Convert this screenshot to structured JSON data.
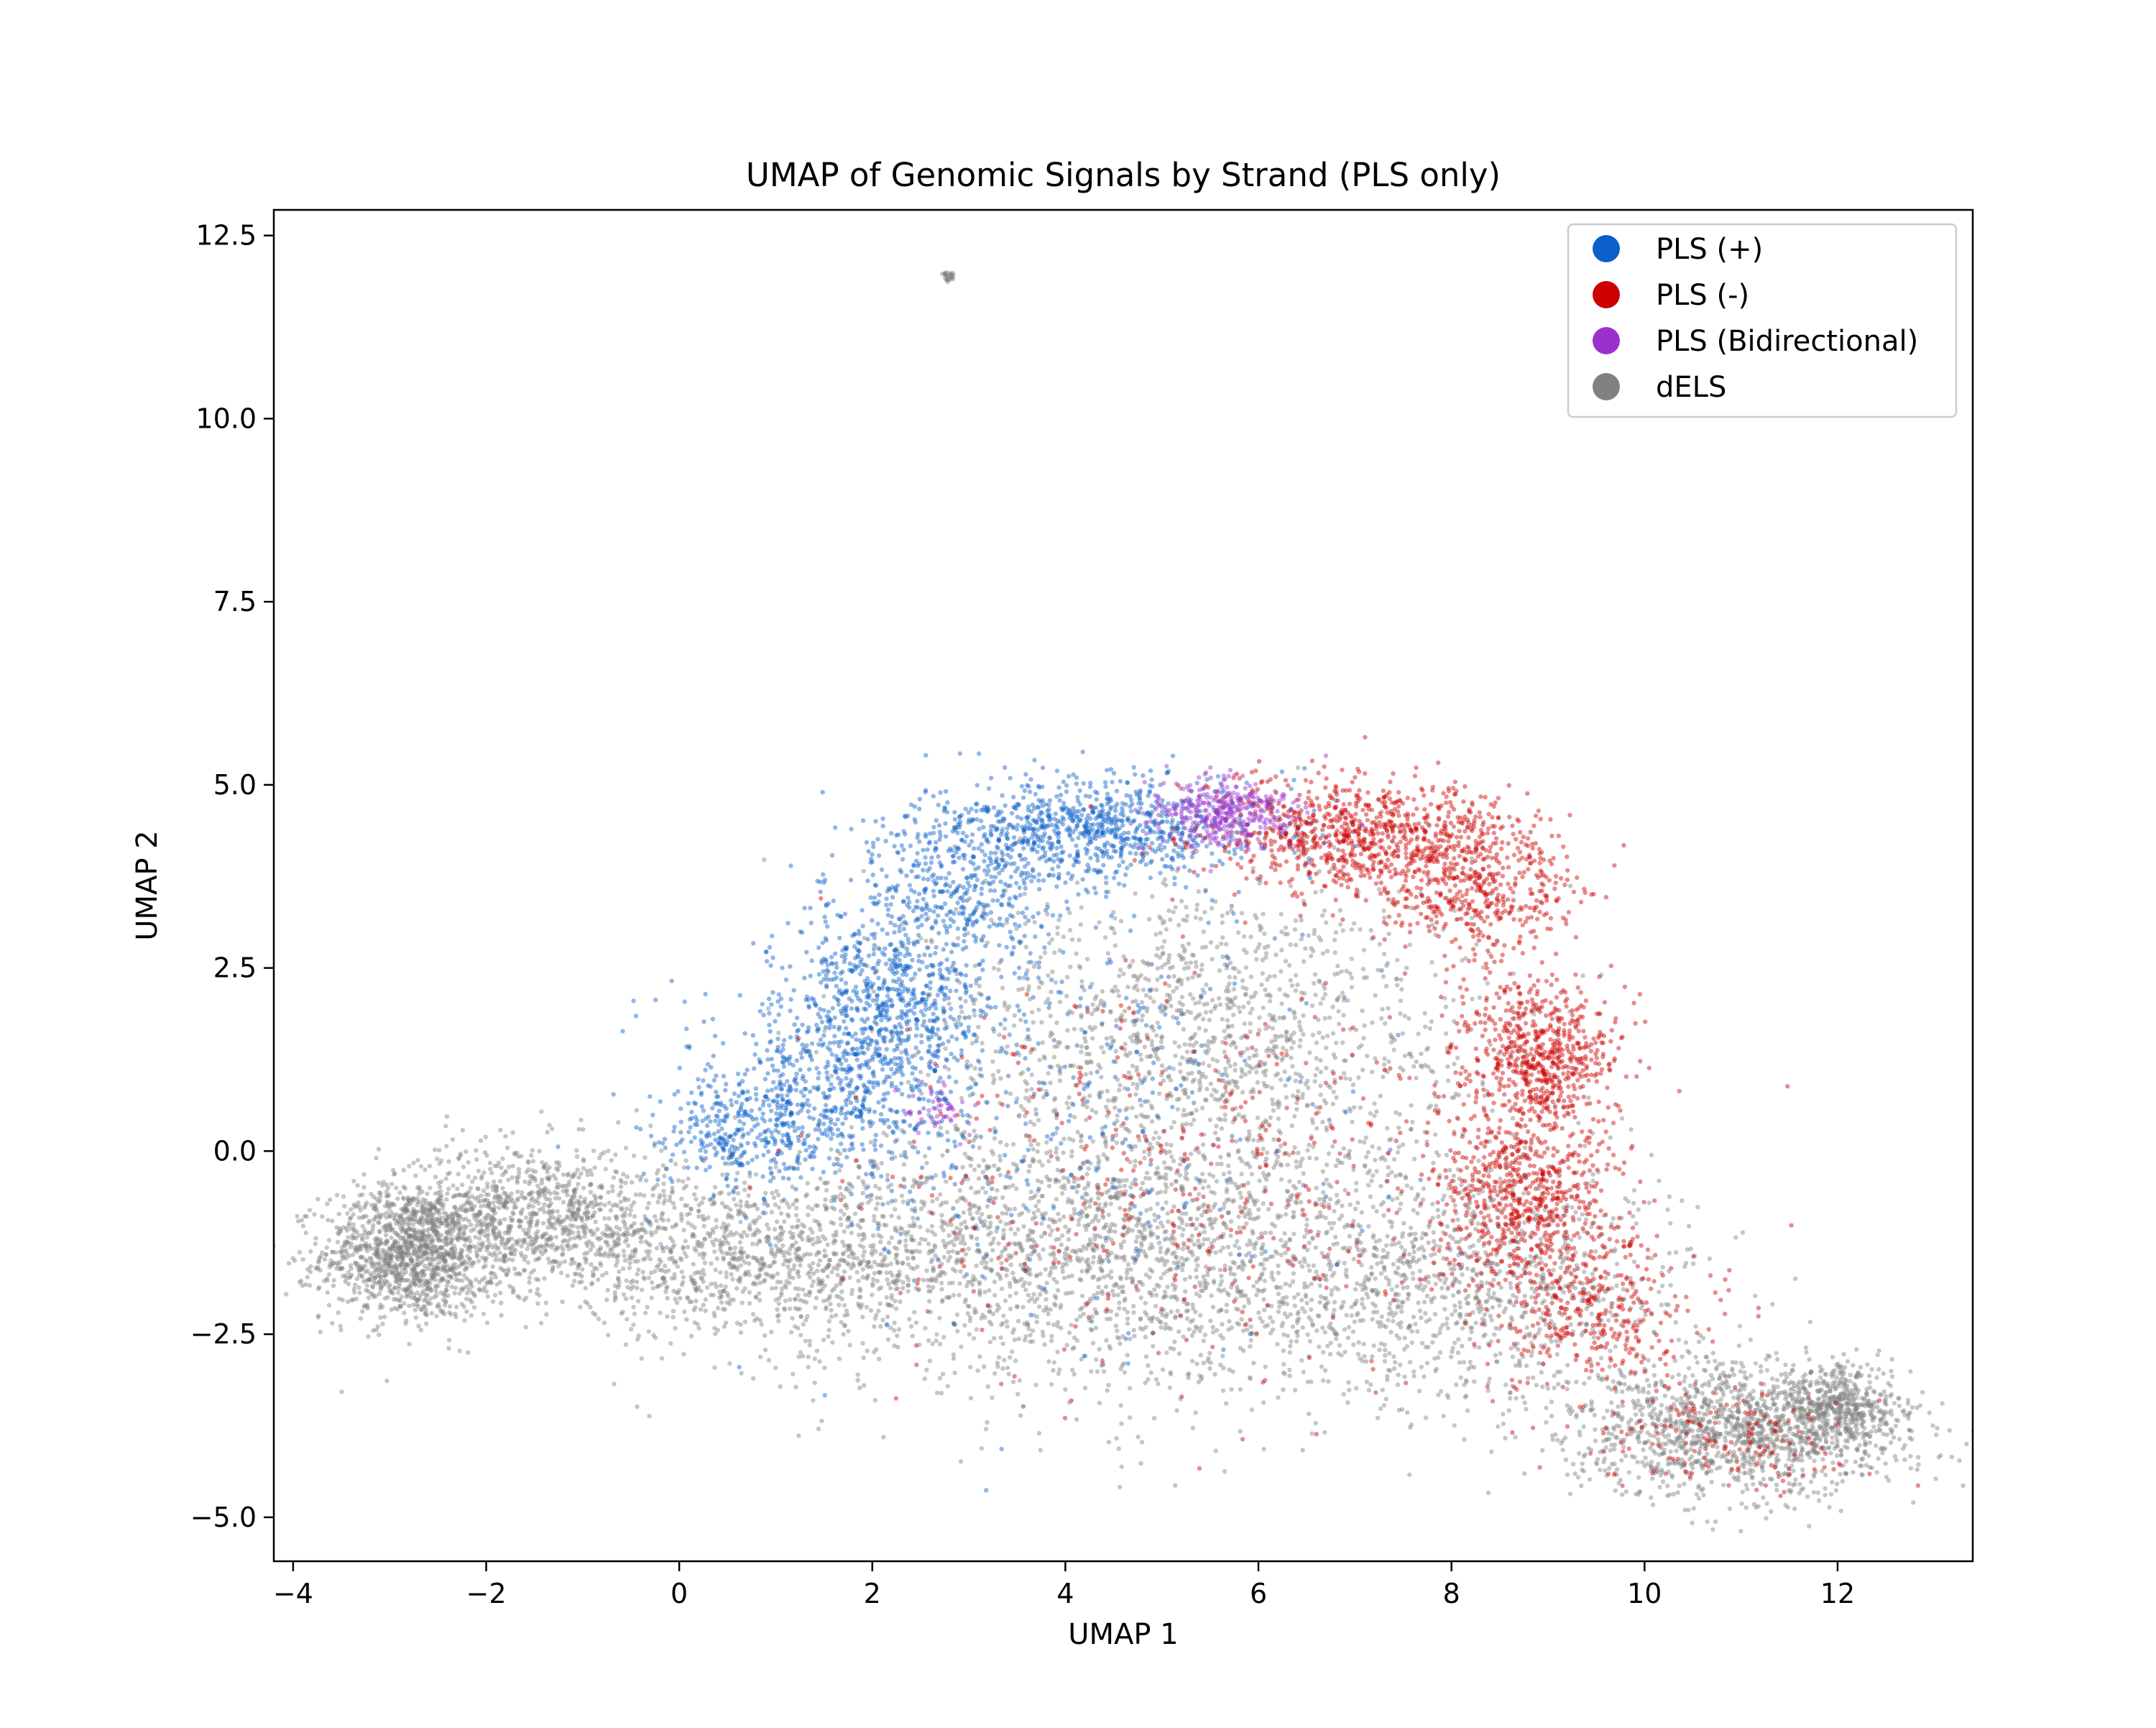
{
  "chart_data": {
    "type": "scatter",
    "title": "UMAP of Genomic Signals by Strand (PLS only)",
    "xlabel": "UMAP 1",
    "ylabel": "UMAP 2",
    "xlim": [
      -4.2,
      13.4
    ],
    "ylim": [
      -5.6,
      12.85
    ],
    "x_ticks": [
      -4,
      -2,
      0,
      2,
      4,
      6,
      8,
      10,
      12
    ],
    "x_tick_labels": [
      "−4",
      "−2",
      "0",
      "2",
      "4",
      "6",
      "8",
      "10",
      "12"
    ],
    "y_ticks": [
      -5.0,
      -2.5,
      0.0,
      2.5,
      5.0,
      7.5,
      10.0,
      12.5
    ],
    "y_tick_labels": [
      "−5.0",
      "−2.5",
      "0.0",
      "2.5",
      "5.0",
      "7.5",
      "10.0",
      "12.5"
    ],
    "grid": false,
    "legend_position": "top-right",
    "series": [
      {
        "name": "PLS (+)",
        "color": "#0a60c8",
        "clusters": [
          {
            "cx": 4.3,
            "cy": 4.4,
            "sx": 0.9,
            "sy": 0.35,
            "n": 900
          },
          {
            "cx": 2.9,
            "cy": 3.6,
            "sx": 0.6,
            "sy": 0.4,
            "n": 350
          },
          {
            "cx": 2.2,
            "cy": 2.1,
            "sx": 0.55,
            "sy": 0.6,
            "n": 700
          },
          {
            "cx": 1.6,
            "cy": 0.8,
            "sx": 0.6,
            "sy": 0.6,
            "n": 500
          },
          {
            "cx": 0.6,
            "cy": 0.2,
            "sx": 0.5,
            "sy": 0.4,
            "n": 300
          },
          {
            "cx": 3.8,
            "cy": 0.5,
            "sx": 1.6,
            "sy": 1.5,
            "n": 400
          }
        ]
      },
      {
        "name": "PLS (-)",
        "color": "#cc0000",
        "clusters": [
          {
            "cx": 7.1,
            "cy": 4.3,
            "sx": 0.8,
            "sy": 0.4,
            "n": 850
          },
          {
            "cx": 8.3,
            "cy": 3.6,
            "sx": 0.5,
            "sy": 0.45,
            "n": 450
          },
          {
            "cx": 8.9,
            "cy": 1.3,
            "sx": 0.4,
            "sy": 0.5,
            "n": 650
          },
          {
            "cx": 8.8,
            "cy": -0.6,
            "sx": 0.45,
            "sy": 0.6,
            "n": 650
          },
          {
            "cx": 9.5,
            "cy": -2.2,
            "sx": 0.6,
            "sy": 0.5,
            "n": 350
          },
          {
            "cx": 5.3,
            "cy": -0.3,
            "sx": 1.8,
            "sy": 1.4,
            "n": 450
          },
          {
            "cx": 10.8,
            "cy": -3.9,
            "sx": 0.7,
            "sy": 0.35,
            "n": 150
          }
        ]
      },
      {
        "name": "PLS (Bidirectional)",
        "color": "#9932cc",
        "clusters": [
          {
            "cx": 5.6,
            "cy": 4.6,
            "sx": 0.35,
            "sy": 0.25,
            "n": 380
          },
          {
            "cx": 2.7,
            "cy": 0.6,
            "sx": 0.2,
            "sy": 0.2,
            "n": 50
          }
        ]
      },
      {
        "name": "dELS",
        "color": "#808080",
        "clusters": [
          {
            "cx": -2.8,
            "cy": -1.4,
            "sx": 0.45,
            "sy": 0.45,
            "n": 1200
          },
          {
            "cx": -1.5,
            "cy": -0.9,
            "sx": 0.8,
            "sy": 0.5,
            "n": 1100
          },
          {
            "cx": 0.8,
            "cy": -1.5,
            "sx": 1.2,
            "sy": 0.5,
            "n": 900
          },
          {
            "cx": 3.5,
            "cy": -1.4,
            "sx": 1.6,
            "sy": 0.9,
            "n": 1300
          },
          {
            "cx": 5.4,
            "cy": 1.6,
            "sx": 1.4,
            "sy": 1.1,
            "n": 1400
          },
          {
            "cx": 5.8,
            "cy": -1.5,
            "sx": 1.4,
            "sy": 1.0,
            "n": 1100
          },
          {
            "cx": 8.5,
            "cy": -1.8,
            "sx": 1.0,
            "sy": 0.8,
            "n": 800
          },
          {
            "cx": 11.0,
            "cy": -3.8,
            "sx": 0.9,
            "sy": 0.45,
            "n": 1400
          },
          {
            "cx": 12.0,
            "cy": -3.5,
            "sx": 0.3,
            "sy": 0.3,
            "n": 400
          },
          {
            "cx": 2.8,
            "cy": 11.95,
            "sx": 0.03,
            "sy": 0.03,
            "n": 25
          }
        ]
      }
    ]
  }
}
